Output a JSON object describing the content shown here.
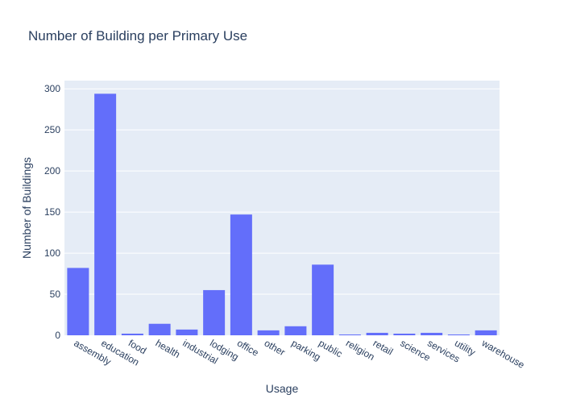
{
  "chart_data": {
    "type": "bar",
    "title": "Number of Building per Primary Use",
    "xlabel": "Usage",
    "ylabel": "Number of Buildings",
    "categories": [
      "assembly",
      "education",
      "food",
      "health",
      "industrial",
      "lodging",
      "office",
      "other",
      "parking",
      "public",
      "religion",
      "retail",
      "science",
      "services",
      "utility",
      "warehouse"
    ],
    "values": [
      82,
      294,
      2,
      14,
      7,
      55,
      147,
      6,
      11,
      86,
      1,
      3,
      2,
      3,
      1,
      6
    ],
    "ylim": [
      0,
      310
    ],
    "yticks": [
      0,
      50,
      100,
      150,
      200,
      250,
      300
    ],
    "grid": true,
    "colors": {
      "bar": "#636efa",
      "plot_bg": "#e5ecf6",
      "grid": "#ffffff",
      "text": "#2a3f5f"
    }
  }
}
